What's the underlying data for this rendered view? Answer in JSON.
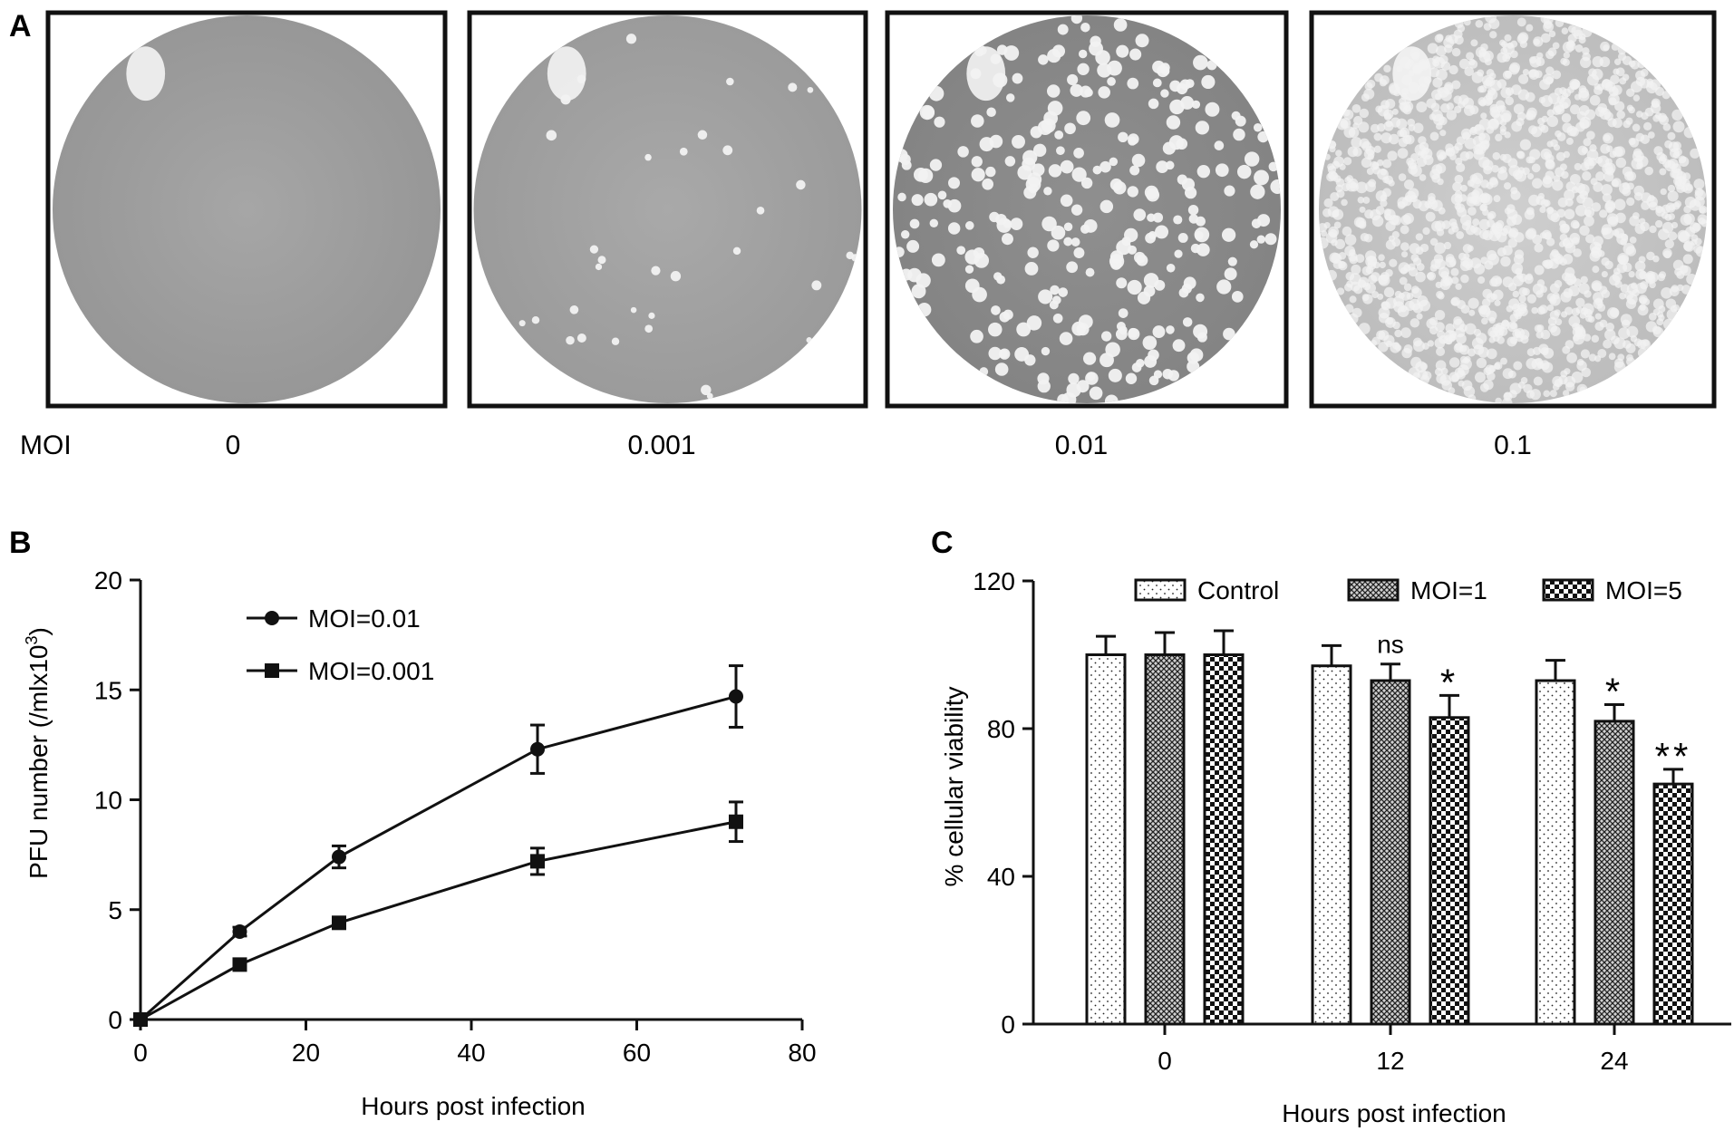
{
  "panel_a": {
    "letter": "A",
    "row_label": "MOI",
    "wells": [
      {
        "moi_label": "0",
        "plaque_density": "none"
      },
      {
        "moi_label": "0.001",
        "plaque_density": "sparse"
      },
      {
        "moi_label": "0.01",
        "plaque_density": "dense"
      },
      {
        "moi_label": "0.1",
        "plaque_density": "confluent"
      }
    ]
  },
  "panel_b_letter": "B",
  "panel_c_letter": "C",
  "chart_data": [
    {
      "panel": "B",
      "type": "line",
      "title": "",
      "xlabel": "Hours post infection",
      "ylabel": "PFU number (/mlx10³)",
      "ylabel_parts": {
        "main": "PFU number (/mlx10",
        "sup": "3",
        "end": ")"
      },
      "xlim": [
        0,
        80
      ],
      "ylim": [
        0,
        20
      ],
      "xticks": [
        0,
        20,
        40,
        60,
        80
      ],
      "yticks": [
        0,
        5,
        10,
        15,
        20
      ],
      "grid": false,
      "legend_position": "top-left",
      "series": [
        {
          "name": "MOI=0.01",
          "marker": "circle",
          "x": [
            0,
            12,
            24,
            48,
            72
          ],
          "y": [
            0,
            4.0,
            7.4,
            12.3,
            14.7
          ],
          "err": [
            0,
            0.2,
            0.5,
            1.1,
            1.4
          ]
        },
        {
          "name": "MOI=0.001",
          "marker": "square",
          "x": [
            0,
            12,
            24,
            48,
            72
          ],
          "y": [
            0,
            2.5,
            4.4,
            7.2,
            9.0
          ],
          "err": [
            0,
            0.15,
            0.2,
            0.6,
            0.9
          ]
        }
      ]
    },
    {
      "panel": "C",
      "type": "bar",
      "title": "",
      "xlabel": "Hours post infection",
      "ylabel": "% cellular viability",
      "categories": [
        "0",
        "12",
        "24"
      ],
      "ylim": [
        0,
        120
      ],
      "yticks": [
        0,
        40,
        80,
        120
      ],
      "grid": false,
      "legend_position": "top",
      "series": [
        {
          "name": "Control",
          "pattern": "dots",
          "values": [
            100,
            97,
            93
          ],
          "err": [
            5,
            5.5,
            5.5
          ],
          "annotations": [
            "",
            "",
            ""
          ]
        },
        {
          "name": "MOI=1",
          "pattern": "crosshatch",
          "values": [
            100,
            93,
            82
          ],
          "err": [
            6,
            4.5,
            4.5
          ],
          "annotations": [
            "",
            "ns",
            "*"
          ]
        },
        {
          "name": "MOI=5",
          "pattern": "checker",
          "values": [
            100,
            83,
            65
          ],
          "err": [
            6.5,
            6,
            4
          ],
          "annotations": [
            "",
            "*",
            "**"
          ]
        }
      ]
    }
  ]
}
